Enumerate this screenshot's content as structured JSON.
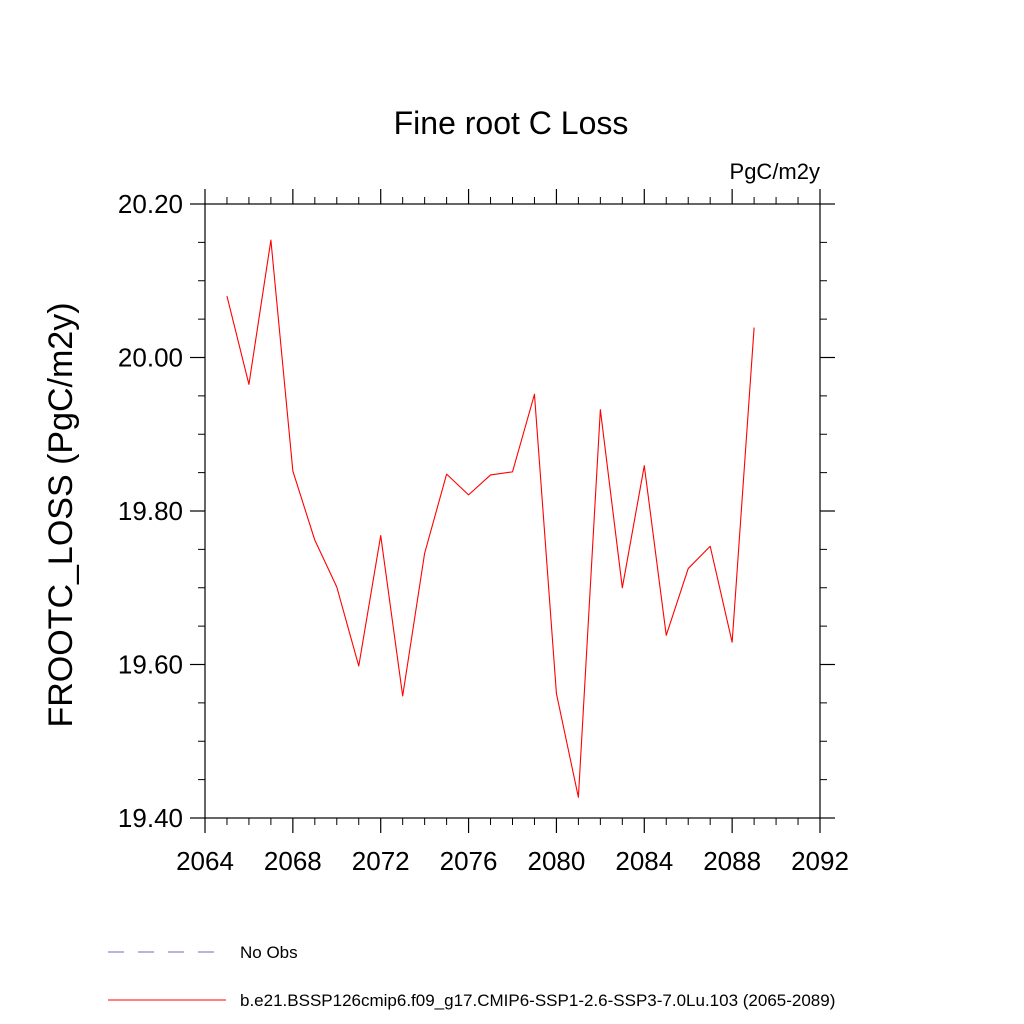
{
  "chart_data": {
    "type": "line",
    "title": "Fine root C Loss",
    "units_label": "PgC/m2y",
    "ylabel": "FROOTC_LOSS  (PgC/m2y)",
    "xlabel": "",
    "xlim": [
      2064,
      2092
    ],
    "ylim": [
      19.4,
      20.2
    ],
    "x_ticks": [
      "2064",
      "2068",
      "2072",
      "2076",
      "2080",
      "2084",
      "2088",
      "2092"
    ],
    "y_ticks": [
      "19.40",
      "19.60",
      "19.80",
      "20.00",
      "20.20"
    ],
    "x": [
      2065,
      2066,
      2067,
      2068,
      2069,
      2070,
      2071,
      2072,
      2073,
      2074,
      2075,
      2076,
      2077,
      2078,
      2079,
      2080,
      2081,
      2082,
      2083,
      2084,
      2085,
      2086,
      2087,
      2088,
      2089
    ],
    "series": [
      {
        "name": "b.e21.BSSP126cmip6.f09_g17.CMIP6-SSP1-2.6-SSP3-7.0Lu.103 (2065-2089)",
        "color": "#ff0000",
        "values": [
          20.08,
          19.965,
          20.153,
          19.852,
          19.762,
          19.701,
          19.598,
          19.768,
          19.559,
          19.745,
          19.848,
          19.821,
          19.847,
          19.851,
          19.952,
          19.562,
          19.427,
          19.932,
          19.7,
          19.859,
          19.638,
          19.725,
          19.754,
          19.629,
          20.039
        ]
      }
    ],
    "legend": [
      {
        "label": "No Obs",
        "color": "#6a6ab8",
        "style": "dashed"
      },
      {
        "label": "b.e21.BSSP126cmip6.f09_g17.CMIP6-SSP1-2.6-SSP3-7.0Lu.103 (2065-2089)",
        "color": "#ff0000",
        "style": "solid"
      }
    ],
    "legend_position": "bottom",
    "grid": false
  }
}
